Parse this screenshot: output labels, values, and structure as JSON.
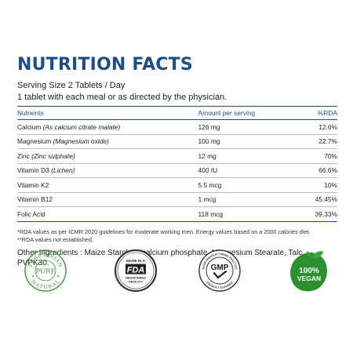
{
  "title": "NUTRITION FACTS",
  "serving_size": "Serving Size 2 Tablets / Day",
  "directions": "1 tablet with each meal or as directed by the physician.",
  "table": {
    "headers": {
      "nutrients": "Nutrients",
      "amount": "Amount per serving",
      "rda": "%RDA"
    },
    "rows": [
      {
        "name": "Calcium",
        "source": "(As calcium citrate malate)",
        "amount": "126 mg",
        "rda": "12.6%"
      },
      {
        "name": "Magnesium",
        "source": "(Magnesium oxide)",
        "amount": "100 mg",
        "rda": "22.7%"
      },
      {
        "name": "Zinc",
        "source": "(Zinc sulphate)",
        "amount": "12 mg",
        "rda": "70%"
      },
      {
        "name": "Vitamin D3",
        "source": "(Lichen)",
        "amount": "400 IU",
        "rda": "66.6%"
      },
      {
        "name": "Vitamin K2",
        "source": "",
        "amount": "5.5 mcg",
        "rda": "10%"
      },
      {
        "name": "Vitamin B12",
        "source": "",
        "amount": "1 mcg",
        "rda": "45.45%"
      },
      {
        "name": "Folic Acid",
        "source": "",
        "amount": "118 mcg",
        "rda": "39.33%"
      }
    ]
  },
  "notes": {
    "rda_note": "*RDA values as per ICMR 2020 guidelines for moderate working men. Energy values based on a 2000 calories diet.",
    "not_established": "**RDA values not established."
  },
  "other_ingredients": "Other Ingredients : Maize Starch, Dicalcium phosphate, Magnesium Stearate, Talc, PVPK30.",
  "badges": {
    "vegetarian": {
      "top_text": "VEGETARIAN",
      "center_text": "PURE",
      "bottom_text": "NATURAL"
    },
    "fda": {
      "line1": "MADE IN A",
      "logo": "FDA",
      "line2": "REGISTERED",
      "line3": "FACILITY"
    },
    "gmp": {
      "ring_top": "GOOD MANUFACTURING PRACTICE",
      "ring_bottom": "PRODUCT ASSURED",
      "logo": "GMP"
    },
    "vegan": {
      "line1": "100%",
      "line2": "VEGAN"
    }
  },
  "colors": {
    "brand_blue": "#1d4e89",
    "veg_green": "#3e9b3a",
    "vegan_green": "#2e8f2e"
  }
}
